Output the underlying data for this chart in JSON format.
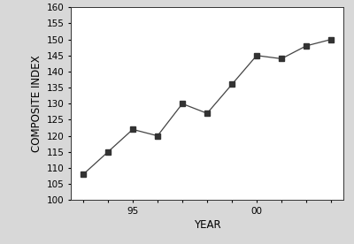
{
  "years": [
    1993,
    1994,
    1995,
    1996,
    1997,
    1998,
    1999,
    2000,
    2001,
    2002,
    2003
  ],
  "values": [
    108,
    115,
    122,
    120,
    130,
    127,
    136,
    145,
    144,
    148,
    150
  ],
  "xlim": [
    1992.5,
    2003.5
  ],
  "ylim": [
    100,
    160
  ],
  "yticks": [
    100,
    105,
    110,
    115,
    120,
    125,
    130,
    135,
    140,
    145,
    150,
    155,
    160
  ],
  "xlabel": "YEAR",
  "ylabel": "COMPOSITE INDEX",
  "line_color": "#444444",
  "marker": "s",
  "marker_size": 4,
  "marker_facecolor": "#333333",
  "bg_color": "#d8d8d8",
  "plot_bg_color": "#ffffff",
  "tick_fontsize": 7.5,
  "label_fontsize": 8.5
}
